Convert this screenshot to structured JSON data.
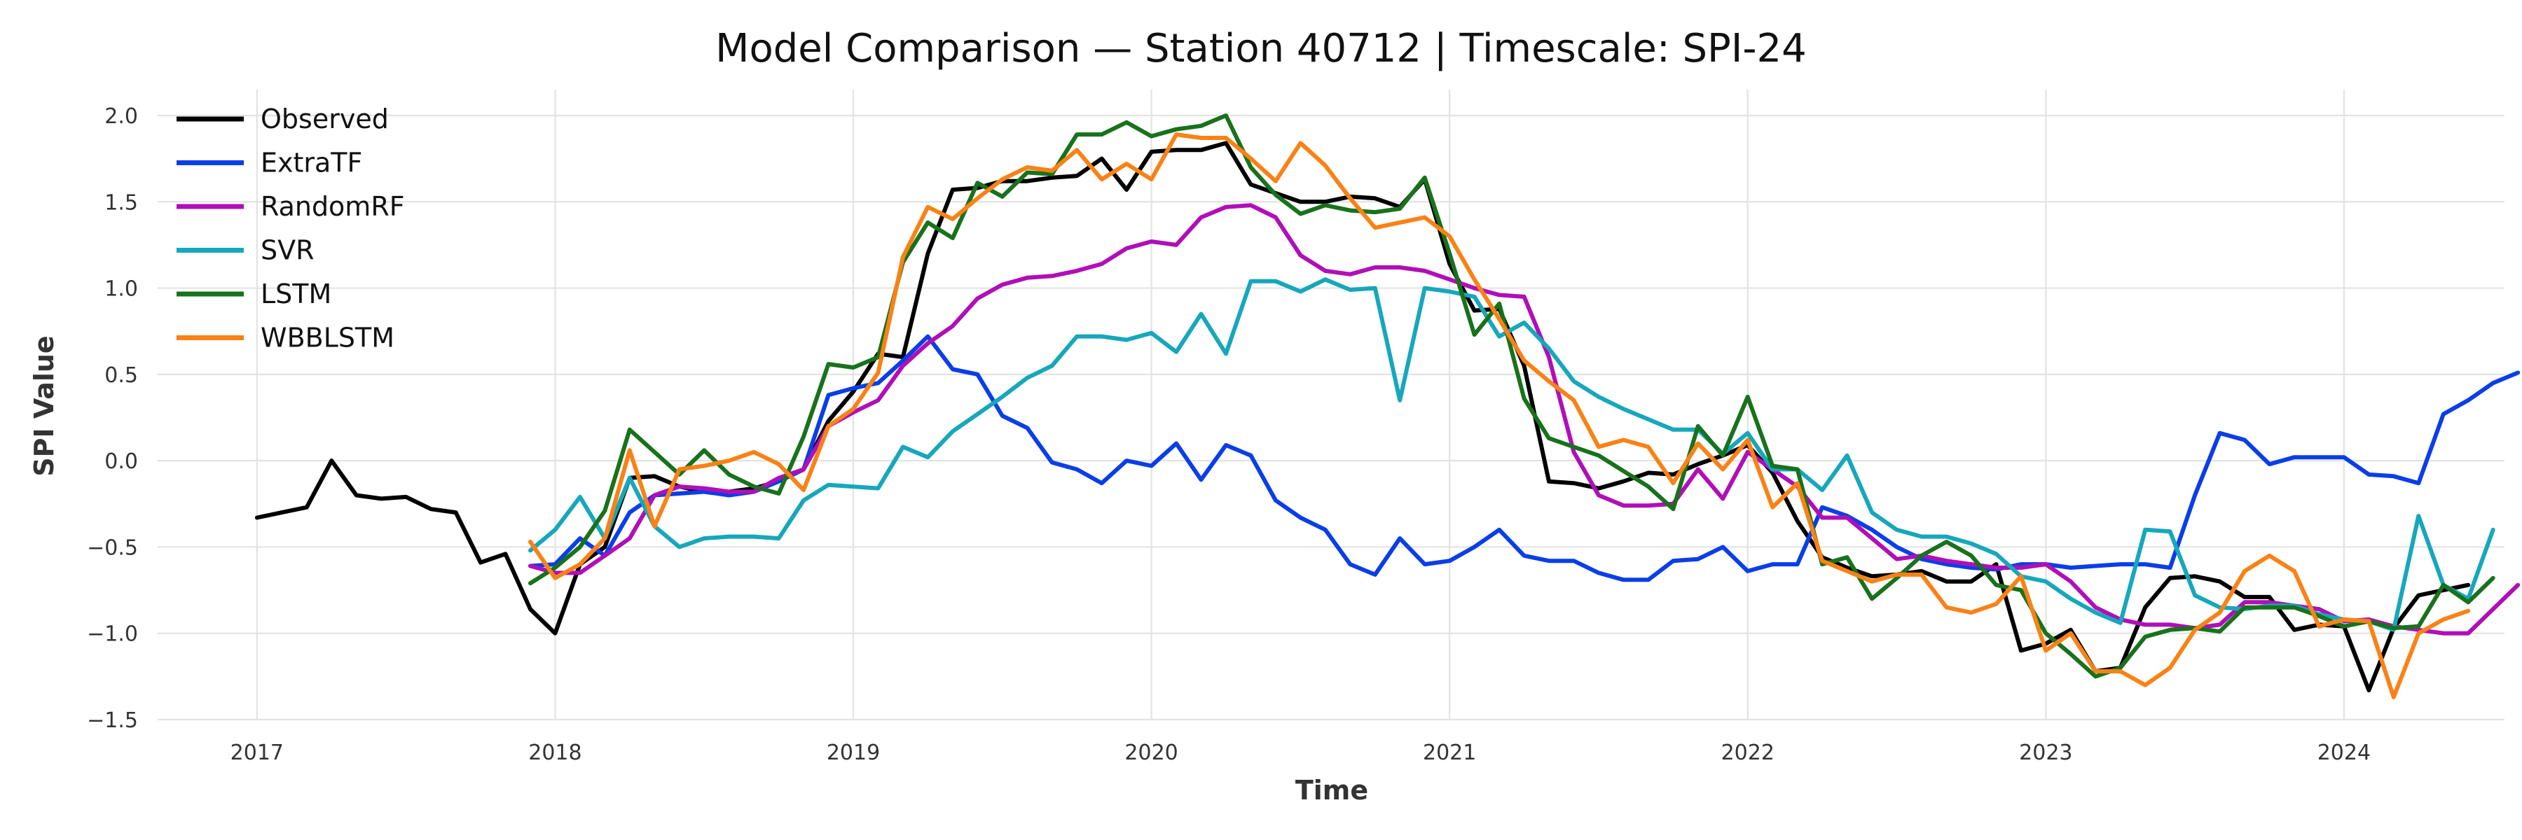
{
  "chart_data": {
    "type": "line",
    "title": "Model Comparison — Station 40712 | Timescale: SPI-24",
    "xlabel": "Time",
    "ylabel": "SPI Value",
    "xlim": [
      "2016-09-01",
      "2024-07-15"
    ],
    "ylim": [
      -1.5,
      2.15
    ],
    "xticks": [
      "2017",
      "2018",
      "2019",
      "2020",
      "2021",
      "2022",
      "2023",
      "2024"
    ],
    "yticks": [
      "2.0",
      "1.5",
      "1.0",
      "0.5",
      "0.0",
      "−0.5",
      "−1.0",
      "−1.5"
    ],
    "grid": true,
    "legend_position": "upper-left",
    "series": [
      {
        "name": "Observed",
        "color": "#000000",
        "start": "2017-01",
        "values": [
          -0.33,
          -0.3,
          -0.27,
          0.0,
          -0.2,
          -0.22,
          -0.21,
          -0.28,
          -0.3,
          -0.59,
          -0.54,
          -0.86,
          -1.0,
          -0.6,
          -0.5,
          -0.1,
          -0.09,
          -0.15,
          -0.18,
          -0.18,
          -0.16,
          -0.12,
          -0.05,
          0.23,
          0.4,
          0.62,
          0.6,
          1.2,
          1.57,
          1.58,
          1.62,
          1.62,
          1.64,
          1.65,
          1.75,
          1.57,
          1.79,
          1.8,
          1.8,
          1.84,
          1.6,
          1.55,
          1.5,
          1.5,
          1.53,
          1.52,
          1.47,
          1.63,
          1.14,
          0.87,
          0.88,
          0.55,
          -0.12,
          -0.13,
          -0.16,
          -0.12,
          -0.07,
          -0.08,
          -0.02,
          0.03,
          0.09,
          -0.07,
          -0.35,
          -0.56,
          -0.62,
          -0.67,
          -0.66,
          -0.64,
          -0.7,
          -0.7,
          -0.6,
          -1.1,
          -1.06,
          -0.98,
          -1.22,
          -1.2,
          -0.85,
          -0.68,
          -0.67,
          -0.7,
          -0.79,
          -0.79,
          -0.98,
          -0.95,
          -0.96,
          -1.33,
          -0.97,
          -0.78,
          -0.75,
          -0.72
        ]
      },
      {
        "name": "ExtraTF",
        "color": "#0a3ee8",
        "start": "2017-12",
        "values": [
          -0.61,
          -0.6,
          -0.45,
          -0.55,
          -0.3,
          -0.2,
          -0.19,
          -0.18,
          -0.2,
          -0.18,
          -0.12,
          -0.05,
          0.38,
          0.42,
          0.45,
          0.58,
          0.72,
          0.53,
          0.5,
          0.26,
          0.19,
          -0.01,
          -0.05,
          -0.13,
          0.0,
          -0.03,
          0.1,
          -0.11,
          0.09,
          0.03,
          -0.23,
          -0.33,
          -0.4,
          -0.6,
          -0.66,
          -0.45,
          -0.6,
          -0.58,
          -0.5,
          -0.4,
          -0.55,
          -0.58,
          -0.58,
          -0.65,
          -0.69,
          -0.69,
          -0.58,
          -0.57,
          -0.5,
          -0.64,
          -0.6,
          -0.6,
          -0.27,
          -0.32,
          -0.4,
          -0.5,
          -0.57,
          -0.6,
          -0.62,
          -0.63,
          -0.6,
          -0.6,
          -0.62,
          -0.61,
          -0.6,
          -0.6,
          -0.62,
          -0.2,
          0.16,
          0.12,
          -0.02,
          0.02,
          0.02,
          0.02,
          -0.08,
          -0.09,
          -0.13,
          0.27,
          0.35,
          0.45,
          0.51
        ]
      },
      {
        "name": "RandomRF",
        "color": "#b00fb8",
        "start": "2017-12",
        "values": [
          -0.61,
          -0.65,
          -0.65,
          -0.55,
          -0.45,
          -0.2,
          -0.15,
          -0.16,
          -0.18,
          -0.18,
          -0.1,
          -0.05,
          0.2,
          0.28,
          0.35,
          0.55,
          0.68,
          0.78,
          0.94,
          1.02,
          1.06,
          1.07,
          1.1,
          1.14,
          1.23,
          1.27,
          1.25,
          1.41,
          1.47,
          1.48,
          1.41,
          1.19,
          1.1,
          1.08,
          1.12,
          1.12,
          1.1,
          1.05,
          1.0,
          0.96,
          0.95,
          0.6,
          0.05,
          -0.2,
          -0.26,
          -0.26,
          -0.25,
          -0.05,
          -0.22,
          0.05,
          -0.05,
          -0.15,
          -0.33,
          -0.33,
          -0.45,
          -0.57,
          -0.55,
          -0.58,
          -0.6,
          -0.62,
          -0.62,
          -0.6,
          -0.7,
          -0.85,
          -0.92,
          -0.95,
          -0.95,
          -0.97,
          -0.95,
          -0.82,
          -0.82,
          -0.84,
          -0.86,
          -0.93,
          -0.92,
          -0.96,
          -0.98,
          -1.0,
          -1.0,
          -0.86,
          -0.72
        ]
      },
      {
        "name": "SVR",
        "color": "#17a7bc",
        "start": "2017-12",
        "values": [
          -0.52,
          -0.4,
          -0.21,
          -0.45,
          -0.1,
          -0.38,
          -0.5,
          -0.45,
          -0.44,
          -0.44,
          -0.45,
          -0.23,
          -0.14,
          -0.15,
          -0.16,
          0.08,
          0.02,
          0.17,
          0.27,
          0.37,
          0.48,
          0.55,
          0.72,
          0.72,
          0.7,
          0.74,
          0.63,
          0.85,
          0.62,
          1.04,
          1.04,
          0.98,
          1.05,
          0.99,
          1.0,
          0.35,
          1.0,
          0.98,
          0.95,
          0.72,
          0.8,
          0.65,
          0.46,
          0.37,
          0.3,
          0.24,
          0.18,
          0.18,
          0.04,
          0.16,
          -0.05,
          -0.05,
          -0.17,
          0.03,
          -0.3,
          -0.4,
          -0.44,
          -0.44,
          -0.48,
          -0.54,
          -0.67,
          -0.7,
          -0.8,
          -0.88,
          -0.94,
          -0.4,
          -0.41,
          -0.78,
          -0.85,
          -0.86,
          -0.84,
          -0.84,
          -0.89,
          -0.92,
          -0.93,
          -0.98,
          -0.32,
          -0.72,
          -0.8,
          -0.4
        ]
      },
      {
        "name": "LSTM",
        "color": "#18721c",
        "start": "2017-12",
        "values": [
          -0.71,
          -0.62,
          -0.5,
          -0.29,
          0.18,
          0.05,
          -0.08,
          0.06,
          -0.08,
          -0.15,
          -0.19,
          0.14,
          0.56,
          0.54,
          0.6,
          1.15,
          1.38,
          1.29,
          1.61,
          1.53,
          1.67,
          1.66,
          1.89,
          1.89,
          1.96,
          1.88,
          1.92,
          1.94,
          2.0,
          1.7,
          1.54,
          1.43,
          1.48,
          1.45,
          1.44,
          1.46,
          1.64,
          1.2,
          0.73,
          0.91,
          0.36,
          0.13,
          0.08,
          0.03,
          -0.06,
          -0.15,
          -0.28,
          0.2,
          0.03,
          0.37,
          -0.03,
          -0.05,
          -0.6,
          -0.56,
          -0.8,
          -0.68,
          -0.55,
          -0.47,
          -0.55,
          -0.72,
          -0.75,
          -1.0,
          -1.12,
          -1.25,
          -1.2,
          -1.02,
          -0.98,
          -0.97,
          -0.99,
          -0.85,
          -0.85,
          -0.85,
          -0.9,
          -0.96,
          -0.93,
          -0.97,
          -0.96,
          -0.72,
          -0.82,
          -0.68
        ]
      },
      {
        "name": "WBBLSTM",
        "color": "#f98216",
        "start": "2017-12",
        "values": [
          -0.47,
          -0.68,
          -0.6,
          -0.45,
          0.06,
          -0.38,
          -0.05,
          -0.03,
          0.0,
          0.05,
          -0.02,
          -0.17,
          0.2,
          0.3,
          0.51,
          1.18,
          1.47,
          1.4,
          1.52,
          1.63,
          1.7,
          1.68,
          1.8,
          1.63,
          1.72,
          1.63,
          1.89,
          1.87,
          1.87,
          1.75,
          1.62,
          1.84,
          1.71,
          1.52,
          1.35,
          1.38,
          1.41,
          1.3,
          1.05,
          0.82,
          0.58,
          0.46,
          0.35,
          0.08,
          0.12,
          0.08,
          -0.13,
          0.1,
          -0.05,
          0.12,
          -0.27,
          -0.13,
          -0.58,
          -0.64,
          -0.7,
          -0.66,
          -0.66,
          -0.85,
          -0.88,
          -0.83,
          -0.67,
          -1.1,
          -1.0,
          -1.22,
          -1.22,
          -1.3,
          -1.2,
          -0.98,
          -0.88,
          -0.64,
          -0.55,
          -0.64,
          -0.96,
          -0.92,
          -0.93,
          -1.37,
          -1.0,
          -0.92,
          -0.87
        ]
      }
    ]
  }
}
